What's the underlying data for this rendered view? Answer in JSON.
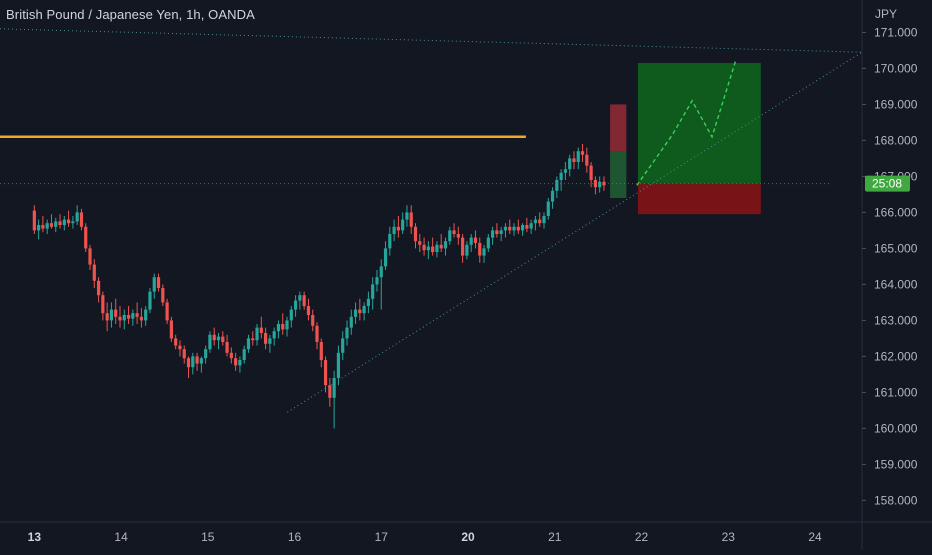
{
  "header": {
    "symbol_title": "British Pound / Japanese Yen, 1h, OANDA",
    "currency": "JPY"
  },
  "colors": {
    "background": "#131722",
    "up": "#26a69a",
    "down": "#ef5350",
    "text": "#b2b5be",
    "level": "#f5a623",
    "target_zone": "#0f5e1d",
    "stop_zone": "#7d1418",
    "price_label": "#3fa83f"
  },
  "chart_data": {
    "type": "candlestick",
    "title": "British Pound / Japanese Yen, 1h, OANDA",
    "ylabel": "JPY",
    "ylim": [
      157.4,
      171.9
    ],
    "y_ticks": [
      "158.000",
      "159.000",
      "160.000",
      "161.000",
      "162.000",
      "163.000",
      "164.000",
      "165.000",
      "166.000",
      "167.000",
      "168.000",
      "169.000",
      "170.000",
      "171.000"
    ],
    "x_ticks": [
      {
        "label": "13",
        "pos": 0,
        "bold": true
      },
      {
        "label": "14",
        "pos": 24
      },
      {
        "label": "15",
        "pos": 48
      },
      {
        "label": "16",
        "pos": 72
      },
      {
        "label": "17",
        "pos": 96
      },
      {
        "label": "20",
        "pos": 120,
        "bold": true
      },
      {
        "label": "21",
        "pos": 144
      },
      {
        "label": "22",
        "pos": 168
      },
      {
        "label": "23",
        "pos": 192
      },
      {
        "label": "24",
        "pos": 216
      }
    ],
    "x_range": [
      -9.5,
      229
    ],
    "current_price_label": "25:08",
    "current_price": 166.8,
    "ohlc": [
      [
        166.05,
        166.2,
        165.4,
        165.5
      ],
      [
        165.5,
        165.8,
        165.25,
        165.65
      ],
      [
        165.65,
        165.9,
        165.45,
        165.55
      ],
      [
        165.55,
        165.8,
        165.4,
        165.7
      ],
      [
        165.7,
        165.95,
        165.55,
        165.6
      ],
      [
        165.6,
        165.85,
        165.45,
        165.75
      ],
      [
        165.75,
        165.95,
        165.55,
        165.65
      ],
      [
        165.65,
        165.9,
        165.5,
        165.8
      ],
      [
        165.8,
        166.05,
        165.6,
        165.7
      ],
      [
        165.7,
        165.9,
        165.55,
        165.75
      ],
      [
        165.75,
        166.2,
        165.65,
        166.0
      ],
      [
        166.0,
        166.1,
        165.5,
        165.6
      ],
      [
        165.6,
        165.7,
        164.9,
        165.0
      ],
      [
        165.0,
        165.1,
        164.4,
        164.55
      ],
      [
        164.55,
        164.7,
        163.9,
        164.1
      ],
      [
        164.1,
        164.2,
        163.5,
        163.7
      ],
      [
        163.7,
        163.8,
        163.0,
        163.2
      ],
      [
        163.2,
        163.5,
        162.7,
        163.0
      ],
      [
        163.0,
        163.5,
        162.8,
        163.3
      ],
      [
        163.3,
        163.6,
        162.9,
        163.1
      ],
      [
        163.1,
        163.4,
        162.8,
        163.0
      ],
      [
        163.0,
        163.3,
        162.75,
        163.15
      ],
      [
        163.15,
        163.4,
        162.9,
        163.05
      ],
      [
        163.05,
        163.3,
        162.85,
        163.2
      ],
      [
        163.2,
        163.5,
        162.9,
        163.1
      ],
      [
        163.1,
        163.35,
        162.8,
        163.0
      ],
      [
        163.0,
        163.4,
        162.85,
        163.3
      ],
      [
        163.3,
        163.9,
        163.2,
        163.8
      ],
      [
        163.8,
        164.3,
        163.6,
        164.2
      ],
      [
        164.2,
        164.3,
        163.8,
        163.9
      ],
      [
        163.9,
        164.0,
        163.4,
        163.5
      ],
      [
        163.5,
        163.6,
        162.9,
        163.0
      ],
      [
        163.0,
        163.1,
        162.4,
        162.5
      ],
      [
        162.5,
        162.6,
        162.2,
        162.3
      ],
      [
        162.3,
        162.45,
        162.0,
        162.2
      ],
      [
        162.2,
        162.3,
        161.8,
        161.95
      ],
      [
        161.95,
        162.0,
        161.4,
        161.7
      ],
      [
        161.7,
        162.1,
        161.5,
        162.0
      ],
      [
        162.0,
        162.1,
        161.6,
        161.8
      ],
      [
        161.8,
        162.0,
        161.55,
        161.95
      ],
      [
        161.95,
        162.3,
        161.8,
        162.2
      ],
      [
        162.2,
        162.7,
        162.1,
        162.6
      ],
      [
        162.6,
        162.8,
        162.3,
        162.45
      ],
      [
        162.45,
        162.65,
        162.2,
        162.55
      ],
      [
        162.55,
        162.7,
        162.3,
        162.4
      ],
      [
        162.4,
        162.6,
        162.0,
        162.1
      ],
      [
        162.1,
        162.25,
        161.8,
        161.95
      ],
      [
        161.95,
        162.1,
        161.6,
        161.75
      ],
      [
        161.75,
        162.0,
        161.55,
        161.9
      ],
      [
        161.9,
        162.3,
        161.8,
        162.2
      ],
      [
        162.2,
        162.6,
        162.1,
        162.5
      ],
      [
        162.5,
        162.7,
        162.3,
        162.45
      ],
      [
        162.45,
        162.9,
        162.3,
        162.8
      ],
      [
        162.8,
        163.1,
        162.5,
        162.65
      ],
      [
        162.65,
        162.8,
        162.2,
        162.35
      ],
      [
        162.35,
        162.6,
        162.1,
        162.5
      ],
      [
        162.5,
        162.8,
        162.3,
        162.7
      ],
      [
        162.7,
        163.0,
        162.5,
        162.9
      ],
      [
        162.9,
        163.2,
        162.6,
        162.75
      ],
      [
        162.75,
        163.1,
        162.55,
        163.0
      ],
      [
        163.0,
        163.4,
        162.8,
        163.3
      ],
      [
        163.3,
        163.7,
        163.1,
        163.55
      ],
      [
        163.55,
        163.8,
        163.3,
        163.7
      ],
      [
        163.7,
        163.8,
        163.3,
        163.4
      ],
      [
        163.4,
        163.6,
        163.0,
        163.15
      ],
      [
        163.15,
        163.3,
        162.7,
        162.85
      ],
      [
        162.85,
        162.95,
        162.2,
        162.4
      ],
      [
        162.4,
        162.5,
        161.7,
        161.9
      ],
      [
        161.9,
        162.0,
        161.0,
        161.2
      ],
      [
        161.2,
        161.4,
        160.6,
        160.85
      ],
      [
        160.85,
        161.6,
        160.0,
        161.4
      ],
      [
        161.4,
        162.3,
        161.2,
        162.1
      ],
      [
        162.1,
        162.7,
        161.9,
        162.5
      ],
      [
        162.5,
        163.0,
        162.3,
        162.8
      ],
      [
        162.8,
        163.3,
        162.6,
        163.1
      ],
      [
        163.1,
        163.5,
        162.9,
        163.3
      ],
      [
        163.3,
        163.6,
        163.0,
        163.2
      ],
      [
        163.2,
        163.5,
        163.0,
        163.4
      ],
      [
        163.4,
        163.8,
        163.2,
        163.6
      ],
      [
        163.6,
        164.2,
        163.3,
        164.0
      ],
      [
        164.0,
        164.4,
        163.8,
        164.2
      ],
      [
        164.2,
        164.7,
        163.3,
        164.5
      ],
      [
        164.5,
        165.2,
        164.4,
        165.0
      ],
      [
        165.0,
        165.6,
        164.8,
        165.4
      ],
      [
        165.4,
        165.8,
        165.2,
        165.6
      ],
      [
        165.6,
        165.9,
        165.3,
        165.5
      ],
      [
        165.5,
        166.0,
        165.4,
        165.8
      ],
      [
        165.8,
        166.2,
        165.6,
        166.0
      ],
      [
        166.0,
        166.2,
        165.4,
        165.6
      ],
      [
        165.6,
        165.7,
        165.0,
        165.2
      ],
      [
        165.2,
        165.4,
        164.9,
        165.1
      ],
      [
        165.1,
        165.3,
        164.8,
        164.95
      ],
      [
        164.95,
        165.2,
        164.7,
        165.05
      ],
      [
        165.05,
        165.3,
        164.8,
        164.9
      ],
      [
        164.9,
        165.2,
        164.75,
        165.1
      ],
      [
        165.1,
        165.4,
        164.9,
        165.0
      ],
      [
        165.0,
        165.3,
        164.8,
        165.2
      ],
      [
        165.2,
        165.6,
        165.1,
        165.5
      ],
      [
        165.5,
        165.7,
        165.3,
        165.4
      ],
      [
        165.4,
        165.6,
        165.1,
        165.3
      ],
      [
        165.3,
        165.4,
        164.6,
        164.8
      ],
      [
        164.8,
        165.2,
        164.7,
        165.1
      ],
      [
        165.1,
        165.4,
        164.9,
        165.3
      ],
      [
        165.3,
        165.5,
        165.0,
        165.15
      ],
      [
        165.15,
        165.3,
        164.6,
        164.8
      ],
      [
        164.8,
        165.1,
        164.6,
        165.0
      ],
      [
        165.0,
        165.4,
        164.9,
        165.3
      ],
      [
        165.3,
        165.6,
        165.1,
        165.5
      ],
      [
        165.5,
        165.7,
        165.3,
        165.4
      ],
      [
        165.4,
        165.6,
        165.2,
        165.5
      ],
      [
        165.5,
        165.7,
        165.3,
        165.6
      ],
      [
        165.6,
        165.8,
        165.4,
        165.5
      ],
      [
        165.5,
        165.7,
        165.35,
        165.6
      ],
      [
        165.6,
        165.8,
        165.4,
        165.5
      ],
      [
        165.5,
        165.7,
        165.35,
        165.65
      ],
      [
        165.65,
        165.85,
        165.45,
        165.55
      ],
      [
        165.55,
        165.8,
        165.4,
        165.7
      ],
      [
        165.7,
        165.9,
        165.5,
        165.8
      ],
      [
        165.8,
        166.0,
        165.6,
        165.7
      ],
      [
        165.7,
        166.0,
        165.55,
        165.9
      ],
      [
        165.9,
        166.4,
        165.8,
        166.3
      ],
      [
        166.3,
        166.7,
        166.1,
        166.6
      ],
      [
        166.6,
        167.0,
        166.4,
        166.9
      ],
      [
        166.9,
        167.2,
        166.6,
        167.1
      ],
      [
        167.1,
        167.4,
        166.9,
        167.2
      ],
      [
        167.2,
        167.6,
        167.0,
        167.5
      ],
      [
        167.5,
        167.7,
        167.2,
        167.4
      ],
      [
        167.4,
        167.8,
        167.2,
        167.7
      ],
      [
        167.7,
        167.9,
        167.4,
        167.6
      ],
      [
        167.6,
        167.8,
        167.1,
        167.3
      ],
      [
        167.3,
        167.4,
        166.7,
        166.9
      ],
      [
        166.9,
        167.0,
        166.5,
        166.7
      ],
      [
        166.7,
        167.0,
        166.55,
        166.85
      ],
      [
        166.85,
        167.0,
        166.6,
        166.75
      ]
    ],
    "ohlc_step": 1.185,
    "horizontal_level": 168.1,
    "trendlines": [
      {
        "from": [
          -9.5,
          168.1
        ],
        "to": [
          136,
          168.1
        ],
        "style": "solid"
      },
      {
        "from": [
          -9.5,
          171.1
        ],
        "to": [
          229,
          170.45
        ],
        "style": "dotted"
      },
      {
        "from": [
          70,
          160.45
        ],
        "to": [
          229,
          170.45
        ],
        "style": "dotted"
      },
      {
        "from": [
          -9.5,
          166.8
        ],
        "to": [
          220,
          166.8
        ],
        "style": "dotted-price"
      }
    ],
    "projection_path": [
      [
        166.7,
        166.75
      ],
      [
        176.5,
        168.15
      ],
      [
        182,
        169.1
      ],
      [
        187.5,
        168.1
      ],
      [
        194,
        170.2
      ]
    ],
    "risk_reward": {
      "entry": 166.8,
      "target": 170.15,
      "stop": 165.95,
      "x_start": 167,
      "x_end": 201
    },
    "signal_box_red": {
      "x_start": 159.3,
      "x_end": 163.8,
      "y_top": 169.0,
      "y_bottom": 167.7
    },
    "signal_box_green": {
      "x_start": 159.3,
      "x_end": 163.8,
      "y_top": 167.7,
      "y_bottom": 166.4
    }
  }
}
